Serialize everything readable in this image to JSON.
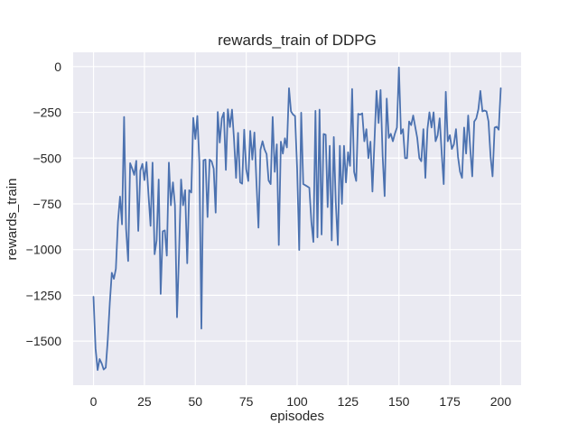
{
  "figure": {
    "title": "rewards_train of DDPG",
    "xlabel": "episodes",
    "ylabel": "rewards_train"
  },
  "chart_data": {
    "type": "line",
    "title": "rewards_train of DDPG",
    "xlabel": "episodes",
    "ylabel": "rewards_train",
    "legend": "none",
    "grid": true,
    "plot_bg": "#eaeaf2",
    "grid_color": "#ffffff",
    "line_color": "#4c72b0",
    "text_color": "#262626",
    "xlim": [
      -10,
      210
    ],
    "ylim": [
      -1741,
      78
    ],
    "xticks": [
      0,
      25,
      50,
      75,
      100,
      125,
      150,
      175,
      200
    ],
    "xtick_labels": [
      "0",
      "25",
      "50",
      "75",
      "100",
      "125",
      "150",
      "175",
      "200"
    ],
    "yticks": [
      0,
      -250,
      -500,
      -750,
      -1000,
      -1250,
      -1500
    ],
    "ytick_labels": [
      "0",
      "−250",
      "−500",
      "−750",
      "−1000",
      "−1250",
      "−1500"
    ],
    "x_start": 0,
    "x_step": 1,
    "values": [
      -1258,
      -1540,
      -1658,
      -1598,
      -1622,
      -1655,
      -1645,
      -1495,
      -1290,
      -1127,
      -1160,
      -1105,
      -848,
      -710,
      -862,
      -275,
      -885,
      -1062,
      -528,
      -558,
      -592,
      -515,
      -898,
      -568,
      -532,
      -620,
      -522,
      -698,
      -870,
      -525,
      -1025,
      -950,
      -617,
      -1242,
      -900,
      -895,
      -1033,
      -525,
      -758,
      -633,
      -758,
      -1370,
      -1025,
      -617,
      -758,
      -675,
      -1075,
      -675,
      -688,
      -280,
      -395,
      -270,
      -525,
      -1432,
      -512,
      -508,
      -822,
      -508,
      -518,
      -558,
      -798,
      -248,
      -415,
      -283,
      -252,
      -565,
      -233,
      -330,
      -235,
      -395,
      -608,
      -362,
      -632,
      -640,
      -345,
      -560,
      -625,
      -352,
      -508,
      -360,
      -625,
      -880,
      -455,
      -408,
      -452,
      -478,
      -622,
      -642,
      -275,
      -575,
      -425,
      -975,
      -410,
      -475,
      -392,
      -442,
      -118,
      -245,
      -262,
      -270,
      -558,
      -1002,
      -252,
      -642,
      -648,
      -655,
      -662,
      -850,
      -958,
      -242,
      -933,
      -235,
      -918,
      -368,
      -372,
      -768,
      -433,
      -950,
      -385,
      -742,
      -975,
      -433,
      -750,
      -433,
      -633,
      -468,
      -542,
      -122,
      -575,
      -625,
      -258,
      -262,
      -255,
      -408,
      -342,
      -500,
      -410,
      -683,
      -400,
      -133,
      -308,
      -128,
      -490,
      -708,
      -175,
      -390,
      -367,
      -408,
      -367,
      -333,
      -5,
      -367,
      -342,
      -500,
      -500,
      -300,
      -320,
      -267,
      -330,
      -390,
      -500,
      -517,
      -342,
      -608,
      -342,
      -250,
      -333,
      -250,
      -408,
      -375,
      -283,
      -475,
      -642,
      -138,
      -408,
      -375,
      -450,
      -425,
      -342,
      -492,
      -575,
      -608,
      -333,
      -475,
      -267,
      -442,
      -600,
      -300,
      -283,
      -233,
      -133,
      -245,
      -240,
      -245,
      -300,
      -492,
      -600,
      -333,
      -328,
      -345,
      -118
    ]
  }
}
